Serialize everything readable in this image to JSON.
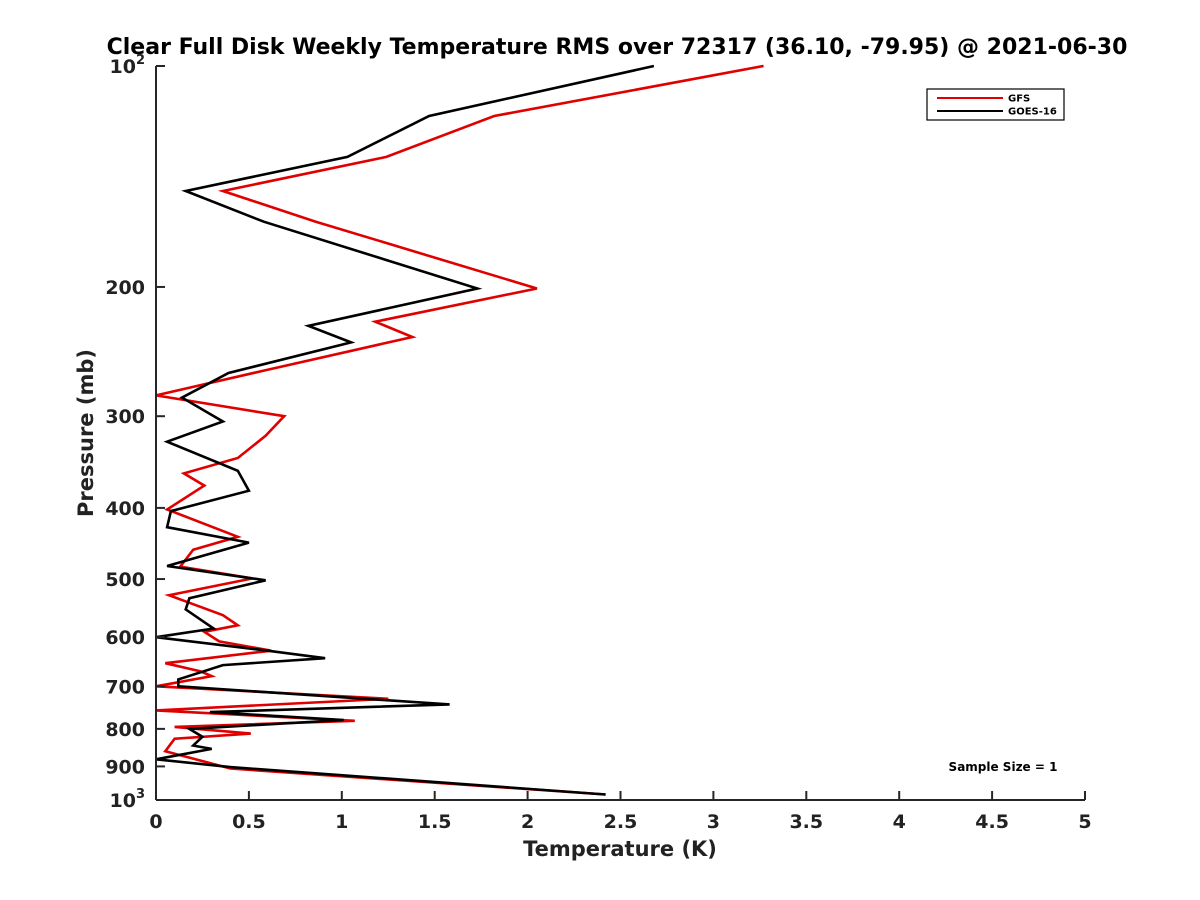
{
  "chart_data": {
    "type": "line",
    "title": "Clear Full Disk Weekly Temperature RMS over 72317 (36.10, -79.95) @ 2021-06-30",
    "xlabel": "Temperature (K)",
    "ylabel": "Pressure (mb)",
    "xlim": [
      0,
      5
    ],
    "ylim": [
      100,
      1000
    ],
    "y_scale": "log",
    "y_reversed": true,
    "grid": false,
    "legend_position": "top-right",
    "x_ticks": [
      "0",
      "0.5",
      "1",
      "1.5",
      "2",
      "2.5",
      "3",
      "3.5",
      "4",
      "4.5",
      "5"
    ],
    "y_ticks": [
      {
        "value": 100,
        "base": "10",
        "exp": "2"
      },
      {
        "value": 200,
        "label": "200"
      },
      {
        "value": 300,
        "label": "300"
      },
      {
        "value": 400,
        "label": "400"
      },
      {
        "value": 500,
        "label": "500"
      },
      {
        "value": 600,
        "label": "600"
      },
      {
        "value": 700,
        "label": "700"
      },
      {
        "value": 800,
        "label": "800"
      },
      {
        "value": 900,
        "label": "900"
      },
      {
        "value": 1000,
        "base": "10",
        "exp": "3"
      }
    ],
    "annotation": "Sample Size = 1",
    "series": [
      {
        "name": "GFS",
        "color": "#e00000",
        "points": [
          [
            3.27,
            100
          ],
          [
            1.82,
            117
          ],
          [
            1.24,
            133
          ],
          [
            0.36,
            148
          ],
          [
            0.86,
            163
          ],
          [
            2.05,
            201
          ],
          [
            1.18,
            223
          ],
          [
            1.38,
            234
          ],
          [
            0.58,
            260
          ],
          [
            0.0,
            281
          ],
          [
            0.69,
            300
          ],
          [
            0.59,
            319
          ],
          [
            0.44,
            342
          ],
          [
            0.15,
            359
          ],
          [
            0.26,
            373
          ],
          [
            0.06,
            402
          ],
          [
            0.44,
            438
          ],
          [
            0.2,
            456
          ],
          [
            0.13,
            481
          ],
          [
            0.52,
            499
          ],
          [
            0.07,
            526
          ],
          [
            0.2,
            541
          ],
          [
            0.36,
            560
          ],
          [
            0.44,
            578
          ],
          [
            0.26,
            590
          ],
          [
            0.34,
            608
          ],
          [
            0.62,
            626
          ],
          [
            0.05,
            651
          ],
          [
            0.24,
            668
          ],
          [
            0.3,
            678
          ],
          [
            0.0,
            700
          ],
          [
            1.25,
            728
          ],
          [
            0.0,
            755
          ],
          [
            1.07,
            780
          ],
          [
            0.1,
            795
          ],
          [
            0.51,
            812
          ],
          [
            0.1,
            825
          ],
          [
            0.05,
            858
          ],
          [
            0.4,
            906
          ],
          [
            2.42,
            983
          ]
        ]
      },
      {
        "name": "GOES-16",
        "color": "#000000",
        "points": [
          [
            2.68,
            100
          ],
          [
            1.47,
            117
          ],
          [
            1.03,
            133
          ],
          [
            0.16,
            148
          ],
          [
            0.58,
            163
          ],
          [
            1.73,
            201
          ],
          [
            0.82,
            226
          ],
          [
            1.05,
            238
          ],
          [
            0.39,
            262
          ],
          [
            0.14,
            283
          ],
          [
            0.36,
            305
          ],
          [
            0.06,
            325
          ],
          [
            0.44,
            356
          ],
          [
            0.5,
            379
          ],
          [
            0.08,
            404
          ],
          [
            0.06,
            425
          ],
          [
            0.5,
            446
          ],
          [
            0.06,
            480
          ],
          [
            0.59,
            502
          ],
          [
            0.18,
            531
          ],
          [
            0.16,
            550
          ],
          [
            0.28,
            577
          ],
          [
            0.31,
            584
          ],
          [
            0.0,
            600
          ],
          [
            0.58,
            625
          ],
          [
            0.91,
            641
          ],
          [
            0.36,
            655
          ],
          [
            0.12,
            685
          ],
          [
            0.12,
            700
          ],
          [
            1.58,
            741
          ],
          [
            0.29,
            759
          ],
          [
            1.01,
            778
          ],
          [
            0.18,
            800
          ],
          [
            0.25,
            820
          ],
          [
            0.2,
            843
          ],
          [
            0.3,
            852
          ],
          [
            0.0,
            880
          ],
          [
            0.4,
            902
          ],
          [
            2.42,
            983
          ]
        ]
      }
    ]
  }
}
